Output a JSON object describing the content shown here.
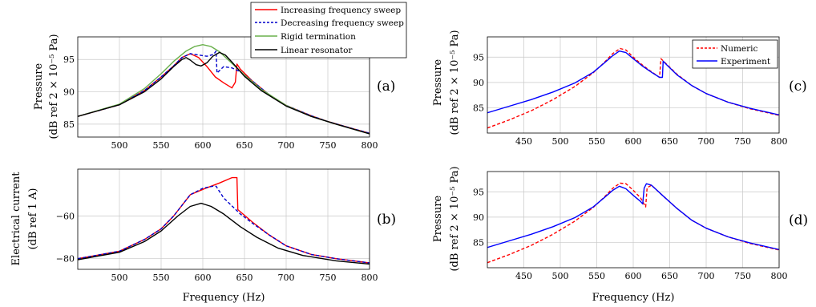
{
  "chart_data": [
    {
      "panel": "(a)",
      "type": "line",
      "ylabel_line1": "Pressure",
      "ylabel_line2": "(dB ref 2 × 10⁻⁵ Pa)",
      "xlabel": "",
      "xlim": [
        450,
        800
      ],
      "ylim": [
        83,
        98.5
      ],
      "xticks": [
        500,
        550,
        600,
        650,
        700,
        750,
        800
      ],
      "yticks": [
        85,
        90,
        95
      ],
      "grid": true,
      "legend_position": "top-right-outside",
      "series": [
        {
          "name": "Increasing frequency sweep",
          "color": "#ff0000",
          "style": "solid",
          "points": [
            [
              450,
              86.2
            ],
            [
              500,
              88.0
            ],
            [
              530,
              90.2
            ],
            [
              550,
              92.3
            ],
            [
              565,
              94.0
            ],
            [
              575,
              95.3
            ],
            [
              585,
              95.9
            ],
            [
              595,
              95.3
            ],
            [
              605,
              93.9
            ],
            [
              615,
              92.3
            ],
            [
              625,
              91.4
            ],
            [
              635,
              90.6
            ],
            [
              639,
              91.5
            ],
            [
              641,
              94.3
            ],
            [
              645,
              93.5
            ],
            [
              660,
              91.6
            ],
            [
              680,
              89.5
            ],
            [
              700,
              87.9
            ],
            [
              730,
              86.3
            ],
            [
              750,
              85.4
            ],
            [
              780,
              84.3
            ],
            [
              800,
              83.6
            ]
          ]
        },
        {
          "name": "Decreasing frequency sweep",
          "color": "#0000cc",
          "style": "dashed",
          "points": [
            [
              450,
              86.2
            ],
            [
              500,
              88.0
            ],
            [
              530,
              90.2
            ],
            [
              550,
              92.3
            ],
            [
              565,
              94.0
            ],
            [
              575,
              95.3
            ],
            [
              585,
              95.9
            ],
            [
              595,
              95.7
            ],
            [
              605,
              95.5
            ],
            [
              613,
              95.8
            ],
            [
              616,
              96.3
            ],
            [
              617,
              92.9
            ],
            [
              625,
              93.9
            ],
            [
              635,
              93.7
            ],
            [
              645,
              93.1
            ],
            [
              660,
              91.6
            ],
            [
              680,
              89.5
            ],
            [
              700,
              87.9
            ],
            [
              730,
              86.3
            ],
            [
              750,
              85.4
            ],
            [
              780,
              84.3
            ],
            [
              800,
              83.6
            ]
          ]
        },
        {
          "name": "Rigid termination",
          "color": "#6ab04c",
          "style": "solid",
          "points": [
            [
              450,
              86.2
            ],
            [
              500,
              88.1
            ],
            [
              530,
              90.5
            ],
            [
              550,
              92.8
            ],
            [
              565,
              94.7
            ],
            [
              580,
              96.3
            ],
            [
              590,
              97.0
            ],
            [
              600,
              97.3
            ],
            [
              610,
              97.0
            ],
            [
              620,
              96.2
            ],
            [
              635,
              94.4
            ],
            [
              650,
              92.6
            ],
            [
              670,
              90.4
            ],
            [
              700,
              87.9
            ],
            [
              730,
              86.2
            ],
            [
              760,
              85.0
            ],
            [
              800,
              83.5
            ]
          ]
        },
        {
          "name": "Linear resonator",
          "color": "#000000",
          "style": "solid",
          "points": [
            [
              450,
              86.2
            ],
            [
              500,
              88.0
            ],
            [
              530,
              90.0
            ],
            [
              550,
              92.0
            ],
            [
              565,
              93.9
            ],
            [
              575,
              95.0
            ],
            [
              580,
              95.3
            ],
            [
              585,
              94.9
            ],
            [
              592,
              94.2
            ],
            [
              598,
              94.0
            ],
            [
              605,
              94.5
            ],
            [
              612,
              95.5
            ],
            [
              620,
              96.1
            ],
            [
              627,
              95.7
            ],
            [
              635,
              94.6
            ],
            [
              650,
              92.4
            ],
            [
              670,
              90.2
            ],
            [
              700,
              87.8
            ],
            [
              730,
              86.2
            ],
            [
              760,
              85.0
            ],
            [
              800,
              83.5
            ]
          ]
        }
      ]
    },
    {
      "panel": "(b)",
      "type": "line",
      "ylabel_line1": "Electrical current",
      "ylabel_line2": "(dB ref 1 A)",
      "xlabel": "Frequency (Hz)",
      "xlim": [
        450,
        800
      ],
      "ylim": [
        -85,
        -38
      ],
      "xticks": [
        500,
        550,
        600,
        650,
        700,
        750,
        800
      ],
      "yticks": [
        -80,
        -60
      ],
      "grid": true,
      "series": [
        {
          "name": "Increasing frequency sweep",
          "color": "#ff0000",
          "style": "solid",
          "points": [
            [
              450,
              -80
            ],
            [
              500,
              -76.5
            ],
            [
              530,
              -71
            ],
            [
              550,
              -66
            ],
            [
              565,
              -60
            ],
            [
              575,
              -55
            ],
            [
              585,
              -50
            ],
            [
              600,
              -47.5
            ],
            [
              620,
              -44.5
            ],
            [
              635,
              -42
            ],
            [
              641,
              -42
            ],
            [
              642,
              -57
            ],
            [
              660,
              -63
            ],
            [
              680,
              -69
            ],
            [
              700,
              -74
            ],
            [
              730,
              -78
            ],
            [
              760,
              -80
            ],
            [
              800,
              -82
            ]
          ]
        },
        {
          "name": "Decreasing frequency sweep",
          "color": "#0000cc",
          "style": "dashed",
          "points": [
            [
              450,
              -80
            ],
            [
              500,
              -76.5
            ],
            [
              530,
              -71
            ],
            [
              550,
              -66
            ],
            [
              565,
              -60
            ],
            [
              575,
              -55
            ],
            [
              585,
              -50
            ],
            [
              600,
              -47
            ],
            [
              612,
              -46
            ],
            [
              616,
              -46
            ],
            [
              625,
              -51.5
            ],
            [
              645,
              -59
            ],
            [
              660,
              -63.5
            ],
            [
              680,
              -69
            ],
            [
              700,
              -74
            ],
            [
              730,
              -78
            ],
            [
              760,
              -80
            ],
            [
              800,
              -82
            ]
          ]
        },
        {
          "name": "Linear resonator",
          "color": "#000000",
          "style": "solid",
          "points": [
            [
              450,
              -80.5
            ],
            [
              500,
              -77
            ],
            [
              530,
              -72
            ],
            [
              550,
              -67
            ],
            [
              570,
              -60
            ],
            [
              585,
              -55.5
            ],
            [
              598,
              -54
            ],
            [
              610,
              -55.5
            ],
            [
              625,
              -59
            ],
            [
              645,
              -65
            ],
            [
              665,
              -70
            ],
            [
              690,
              -75
            ],
            [
              720,
              -78.5
            ],
            [
              760,
              -81
            ],
            [
              800,
              -82.5
            ]
          ]
        }
      ]
    },
    {
      "panel": "(c)",
      "type": "line",
      "ylabel_line1": "Pressure",
      "ylabel_line2": "(dB ref 2 × 10⁻⁵ Pa)",
      "xlabel": "",
      "xlim": [
        400,
        800
      ],
      "ylim": [
        80,
        99
      ],
      "xticks": [
        450,
        500,
        550,
        600,
        650,
        700,
        750,
        800
      ],
      "yticks": [
        85,
        90,
        95
      ],
      "grid": true,
      "legend_position": "top-right",
      "series": [
        {
          "name": "Numeric",
          "color": "#ff0000",
          "style": "dashed",
          "points": [
            [
              400,
              81.0
            ],
            [
              430,
              82.6
            ],
            [
              460,
              84.4
            ],
            [
              490,
              86.6
            ],
            [
              520,
              89.2
            ],
            [
              545,
              91.9
            ],
            [
              560,
              93.9
            ],
            [
              572,
              95.7
            ],
            [
              582,
              96.7
            ],
            [
              590,
              96.4
            ],
            [
              600,
              95.0
            ],
            [
              612,
              93.5
            ],
            [
              625,
              92.1
            ],
            [
              636,
              91.0
            ],
            [
              638,
              94.7
            ],
            [
              645,
              93.7
            ],
            [
              660,
              91.6
            ],
            [
              680,
              89.4
            ],
            [
              700,
              87.8
            ],
            [
              730,
              86.1
            ],
            [
              760,
              84.8
            ],
            [
              800,
              83.5
            ]
          ]
        },
        {
          "name": "Experiment",
          "color": "#0000ff",
          "style": "solid",
          "points": [
            [
              400,
              84.0
            ],
            [
              430,
              85.3
            ],
            [
              460,
              86.6
            ],
            [
              490,
              88.1
            ],
            [
              520,
              89.9
            ],
            [
              545,
              92.0
            ],
            [
              560,
              93.8
            ],
            [
              572,
              95.3
            ],
            [
              581,
              96.2
            ],
            [
              590,
              95.9
            ],
            [
              600,
              94.7
            ],
            [
              612,
              93.3
            ],
            [
              625,
              92.0
            ],
            [
              636,
              91.0
            ],
            [
              640,
              91.0
            ],
            [
              641,
              94.2
            ],
            [
              645,
              93.6
            ],
            [
              660,
              91.5
            ],
            [
              680,
              89.4
            ],
            [
              700,
              87.8
            ],
            [
              730,
              86.1
            ],
            [
              760,
              84.9
            ],
            [
              800,
              83.6
            ]
          ]
        }
      ]
    },
    {
      "panel": "(d)",
      "type": "line",
      "ylabel_line1": "Pressure",
      "ylabel_line2": "(dB ref 2 × 10⁻⁵ Pa)",
      "xlabel": "Frequency (Hz)",
      "xlim": [
        400,
        800
      ],
      "ylim": [
        80,
        99
      ],
      "xticks": [
        450,
        500,
        550,
        600,
        650,
        700,
        750,
        800
      ],
      "yticks": [
        85,
        90,
        95
      ],
      "grid": true,
      "series": [
        {
          "name": "Numeric",
          "color": "#ff0000",
          "style": "dashed",
          "points": [
            [
              400,
              81.0
            ],
            [
              430,
              82.6
            ],
            [
              460,
              84.4
            ],
            [
              490,
              86.6
            ],
            [
              520,
              89.2
            ],
            [
              545,
              91.9
            ],
            [
              560,
              93.9
            ],
            [
              572,
              95.7
            ],
            [
              582,
              96.7
            ],
            [
              590,
              96.6
            ],
            [
              600,
              95.3
            ],
            [
              610,
              93.8
            ],
            [
              617,
              92.0
            ],
            [
              619,
              95.8
            ],
            [
              625,
              96.3
            ],
            [
              640,
              94.3
            ],
            [
              660,
              91.7
            ],
            [
              680,
              89.4
            ],
            [
              700,
              87.8
            ],
            [
              730,
              86.1
            ],
            [
              760,
              84.8
            ],
            [
              800,
              83.5
            ]
          ]
        },
        {
          "name": "Experiment",
          "color": "#0000ff",
          "style": "solid",
          "points": [
            [
              400,
              84.0
            ],
            [
              430,
              85.3
            ],
            [
              460,
              86.6
            ],
            [
              490,
              88.1
            ],
            [
              520,
              89.9
            ],
            [
              545,
              92.0
            ],
            [
              560,
              93.8
            ],
            [
              572,
              95.3
            ],
            [
              581,
              96.1
            ],
            [
              590,
              95.6
            ],
            [
              600,
              94.3
            ],
            [
              610,
              93.1
            ],
            [
              613,
              92.6
            ],
            [
              615,
              95.7
            ],
            [
              618,
              96.6
            ],
            [
              625,
              96.3
            ],
            [
              640,
              94.3
            ],
            [
              660,
              91.7
            ],
            [
              680,
              89.4
            ],
            [
              700,
              87.8
            ],
            [
              730,
              86.1
            ],
            [
              760,
              84.9
            ],
            [
              800,
              83.6
            ]
          ]
        }
      ]
    }
  ]
}
